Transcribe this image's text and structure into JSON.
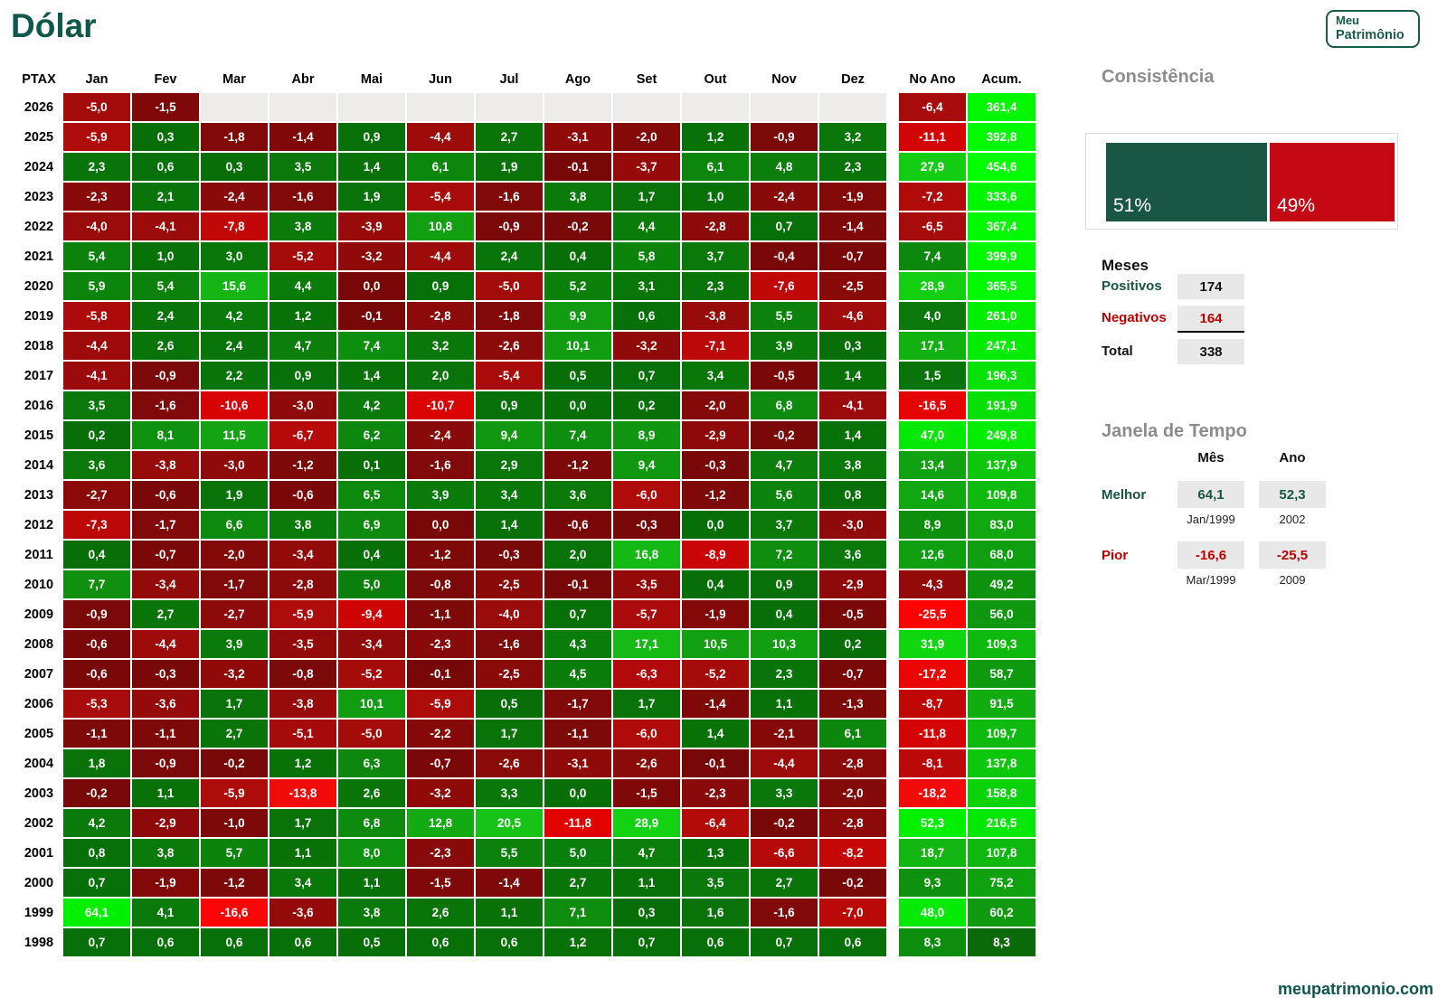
{
  "title": "Dólar",
  "logo": {
    "line1": "Meu",
    "line2": "Patrimônio"
  },
  "footer_link": "meupatrimonio.com",
  "colors": {
    "title_green": "#11574A",
    "brand_green": "#1A5B4A",
    "panel_label_green": "#17563F",
    "panel_label_red": "#C00000",
    "bar_green": "#195744",
    "bar_red": "#C40914",
    "heading_gray": "#8C8C8C",
    "box_gray": "#E9E8E8",
    "empty_cell": "#EDECEA"
  },
  "chart_data": [
    {
      "type": "heatmap",
      "title": "Dólar",
      "corner_label": "PTAX",
      "months": [
        "Jan",
        "Fev",
        "Mar",
        "Abr",
        "Mai",
        "Jun",
        "Jul",
        "Ago",
        "Set",
        "Out",
        "Nov",
        "Dez"
      ],
      "col_no_ano": "No Ano",
      "col_acum": "Acum.",
      "years": [
        "2026",
        "2025",
        "2024",
        "2023",
        "2022",
        "2021",
        "2020",
        "2019",
        "2018",
        "2017",
        "2016",
        "2015",
        "2014",
        "2013",
        "2012",
        "2011",
        "2010",
        "2009",
        "2008",
        "2007",
        "2006",
        "2005",
        "2004",
        "2003",
        "2002",
        "2001",
        "2000",
        "1999",
        "1998"
      ],
      "values": [
        [
          -5.0,
          -1.5,
          null,
          null,
          null,
          null,
          null,
          null,
          null,
          null,
          null,
          null
        ],
        [
          -5.9,
          0.3,
          -1.8,
          -1.4,
          0.9,
          -4.4,
          2.7,
          -3.1,
          -2.0,
          1.2,
          -0.9,
          3.2
        ],
        [
          2.3,
          0.6,
          0.3,
          3.5,
          1.4,
          6.1,
          1.9,
          -0.1,
          -3.7,
          6.1,
          4.8,
          2.3
        ],
        [
          -2.3,
          2.1,
          -2.4,
          -1.6,
          1.9,
          -5.4,
          -1.6,
          3.8,
          1.7,
          1.0,
          -2.4,
          -1.9
        ],
        [
          -4.0,
          -4.1,
          -7.8,
          3.8,
          -3.9,
          10.8,
          -0.9,
          -0.2,
          4.4,
          -2.8,
          0.7,
          -1.4
        ],
        [
          5.4,
          1.0,
          3.0,
          -5.2,
          -3.2,
          -4.4,
          2.4,
          0.4,
          5.8,
          3.7,
          -0.4,
          -0.7
        ],
        [
          5.9,
          5.4,
          15.6,
          4.4,
          0.0,
          0.9,
          -5.0,
          5.2,
          3.1,
          2.3,
          -7.6,
          -2.5
        ],
        [
          -5.8,
          2.4,
          4.2,
          1.2,
          -0.1,
          -2.8,
          -1.8,
          9.9,
          0.6,
          -3.8,
          5.5,
          -4.6
        ],
        [
          -4.4,
          2.6,
          2.4,
          4.7,
          7.4,
          3.2,
          -2.6,
          10.1,
          -3.2,
          -7.1,
          3.9,
          0.3
        ],
        [
          -4.1,
          -0.9,
          2.2,
          0.9,
          1.4,
          2.0,
          -5.4,
          0.5,
          0.7,
          3.4,
          -0.5,
          1.4
        ],
        [
          3.5,
          -1.6,
          -10.6,
          -3.0,
          4.2,
          -10.7,
          0.9,
          0.0,
          0.2,
          -2.0,
          6.8,
          -4.1
        ],
        [
          0.2,
          8.1,
          11.5,
          -6.7,
          6.2,
          -2.4,
          9.4,
          7.4,
          8.9,
          -2.9,
          -0.2,
          1.4
        ],
        [
          3.6,
          -3.8,
          -3.0,
          -1.2,
          0.1,
          -1.6,
          2.9,
          -1.2,
          9.4,
          -0.3,
          4.7,
          3.8
        ],
        [
          -2.7,
          -0.6,
          1.9,
          -0.6,
          6.5,
          3.9,
          3.4,
          3.6,
          -6.0,
          -1.2,
          5.6,
          0.8
        ],
        [
          -7.3,
          -1.7,
          6.6,
          3.8,
          6.9,
          0.0,
          1.4,
          -0.6,
          -0.3,
          0.0,
          3.7,
          -3.0
        ],
        [
          0.4,
          -0.7,
          -2.0,
          -3.4,
          0.4,
          -1.2,
          -0.3,
          2.0,
          16.8,
          -8.9,
          7.2,
          3.6
        ],
        [
          7.7,
          -3.4,
          -1.7,
          -2.8,
          5.0,
          -0.8,
          -2.5,
          -0.1,
          -3.5,
          0.4,
          0.9,
          -2.9
        ],
        [
          -0.9,
          2.7,
          -2.7,
          -5.9,
          -9.4,
          -1.1,
          -4.0,
          0.7,
          -5.7,
          -1.9,
          0.4,
          -0.5
        ],
        [
          -0.6,
          -4.4,
          3.9,
          -3.5,
          -3.4,
          -2.3,
          -1.6,
          4.3,
          17.1,
          10.5,
          10.3,
          0.2
        ],
        [
          -0.6,
          -0.3,
          -3.2,
          -0.8,
          -5.2,
          -0.1,
          -2.5,
          4.5,
          -6.3,
          -5.2,
          2.3,
          -0.7
        ],
        [
          -5.3,
          -3.6,
          1.7,
          -3.8,
          10.1,
          -5.9,
          0.5,
          -1.7,
          1.7,
          -1.4,
          1.1,
          -1.3
        ],
        [
          -1.1,
          -1.1,
          2.7,
          -5.1,
          -5.0,
          -2.2,
          1.7,
          -1.1,
          -6.0,
          1.4,
          -2.1,
          6.1
        ],
        [
          1.8,
          -0.9,
          -0.2,
          1.2,
          6.3,
          -0.7,
          -2.6,
          -3.1,
          -2.6,
          -0.1,
          -4.4,
          -2.8
        ],
        [
          -0.2,
          1.1,
          -5.9,
          -13.8,
          2.6,
          -3.2,
          3.3,
          0.0,
          -1.5,
          -2.3,
          3.3,
          -2.0
        ],
        [
          4.2,
          -2.9,
          -1.0,
          1.7,
          6.8,
          12.8,
          20.5,
          -11.8,
          28.9,
          -6.4,
          -0.2,
          -2.8
        ],
        [
          0.8,
          3.8,
          5.7,
          1.1,
          8.0,
          -2.3,
          5.5,
          5.0,
          4.7,
          1.3,
          -6.6,
          -8.2
        ],
        [
          0.7,
          -1.9,
          -1.2,
          3.4,
          1.1,
          -1.5,
          -1.4,
          2.7,
          1.1,
          3.5,
          2.7,
          -0.2
        ],
        [
          64.1,
          4.1,
          -16.6,
          -3.6,
          3.8,
          2.6,
          1.1,
          7.1,
          0.3,
          1.6,
          -1.6,
          -7.0
        ],
        [
          0.7,
          0.6,
          0.6,
          0.6,
          0.5,
          0.6,
          0.6,
          1.2,
          0.7,
          0.6,
          0.7,
          0.6
        ]
      ],
      "no_ano": [
        -6.4,
        -11.1,
        27.9,
        -7.2,
        -6.5,
        7.4,
        28.9,
        4.0,
        17.1,
        1.5,
        -16.5,
        47.0,
        13.4,
        14.6,
        8.9,
        12.6,
        -4.3,
        -25.5,
        31.9,
        -17.2,
        -8.7,
        -11.8,
        -8.1,
        -18.2,
        52.3,
        18.7,
        9.3,
        48.0,
        8.3
      ],
      "acum": [
        361.4,
        392.8,
        454.6,
        333.6,
        367.4,
        399.9,
        365.5,
        261.0,
        247.1,
        196.3,
        191.9,
        249.8,
        137.9,
        109.8,
        83.0,
        68.0,
        49.2,
        56.0,
        109.3,
        58.7,
        91.5,
        109.7,
        137.8,
        158.8,
        216.5,
        107.8,
        75.2,
        60.2,
        8.3
      ],
      "negative_zero_cells": [
        [
          "2020",
          "Mai"
        ],
        [
          "2012",
          "Jun"
        ]
      ]
    },
    {
      "type": "bar",
      "title": "Consistência",
      "categories": [
        "Positivos",
        "Negativos"
      ],
      "values_pct": [
        51,
        49
      ],
      "labels": [
        "51%",
        "49%"
      ],
      "colors": [
        "#195744",
        "#C40914"
      ],
      "legend_position": "none"
    }
  ],
  "consistencia": {
    "heading": "Consistência"
  },
  "meses": {
    "heading": "Meses",
    "rows": [
      {
        "label": "Positivos",
        "value": "174"
      },
      {
        "label": "Negativos",
        "value": "164"
      },
      {
        "label": "Total",
        "value": "338"
      }
    ]
  },
  "janela": {
    "heading": "Janela de Tempo",
    "col_mes": "Mês",
    "col_ano": "Ano",
    "melhor": {
      "label": "Melhor",
      "mes": "64,1",
      "mes_caption": "Jan/1999",
      "ano": "52,3",
      "ano_caption": "2002"
    },
    "pior": {
      "label": "Pior",
      "mes": "-16,6",
      "mes_caption": "Mar/1999",
      "ano": "-25,5",
      "ano_caption": "2009"
    }
  }
}
